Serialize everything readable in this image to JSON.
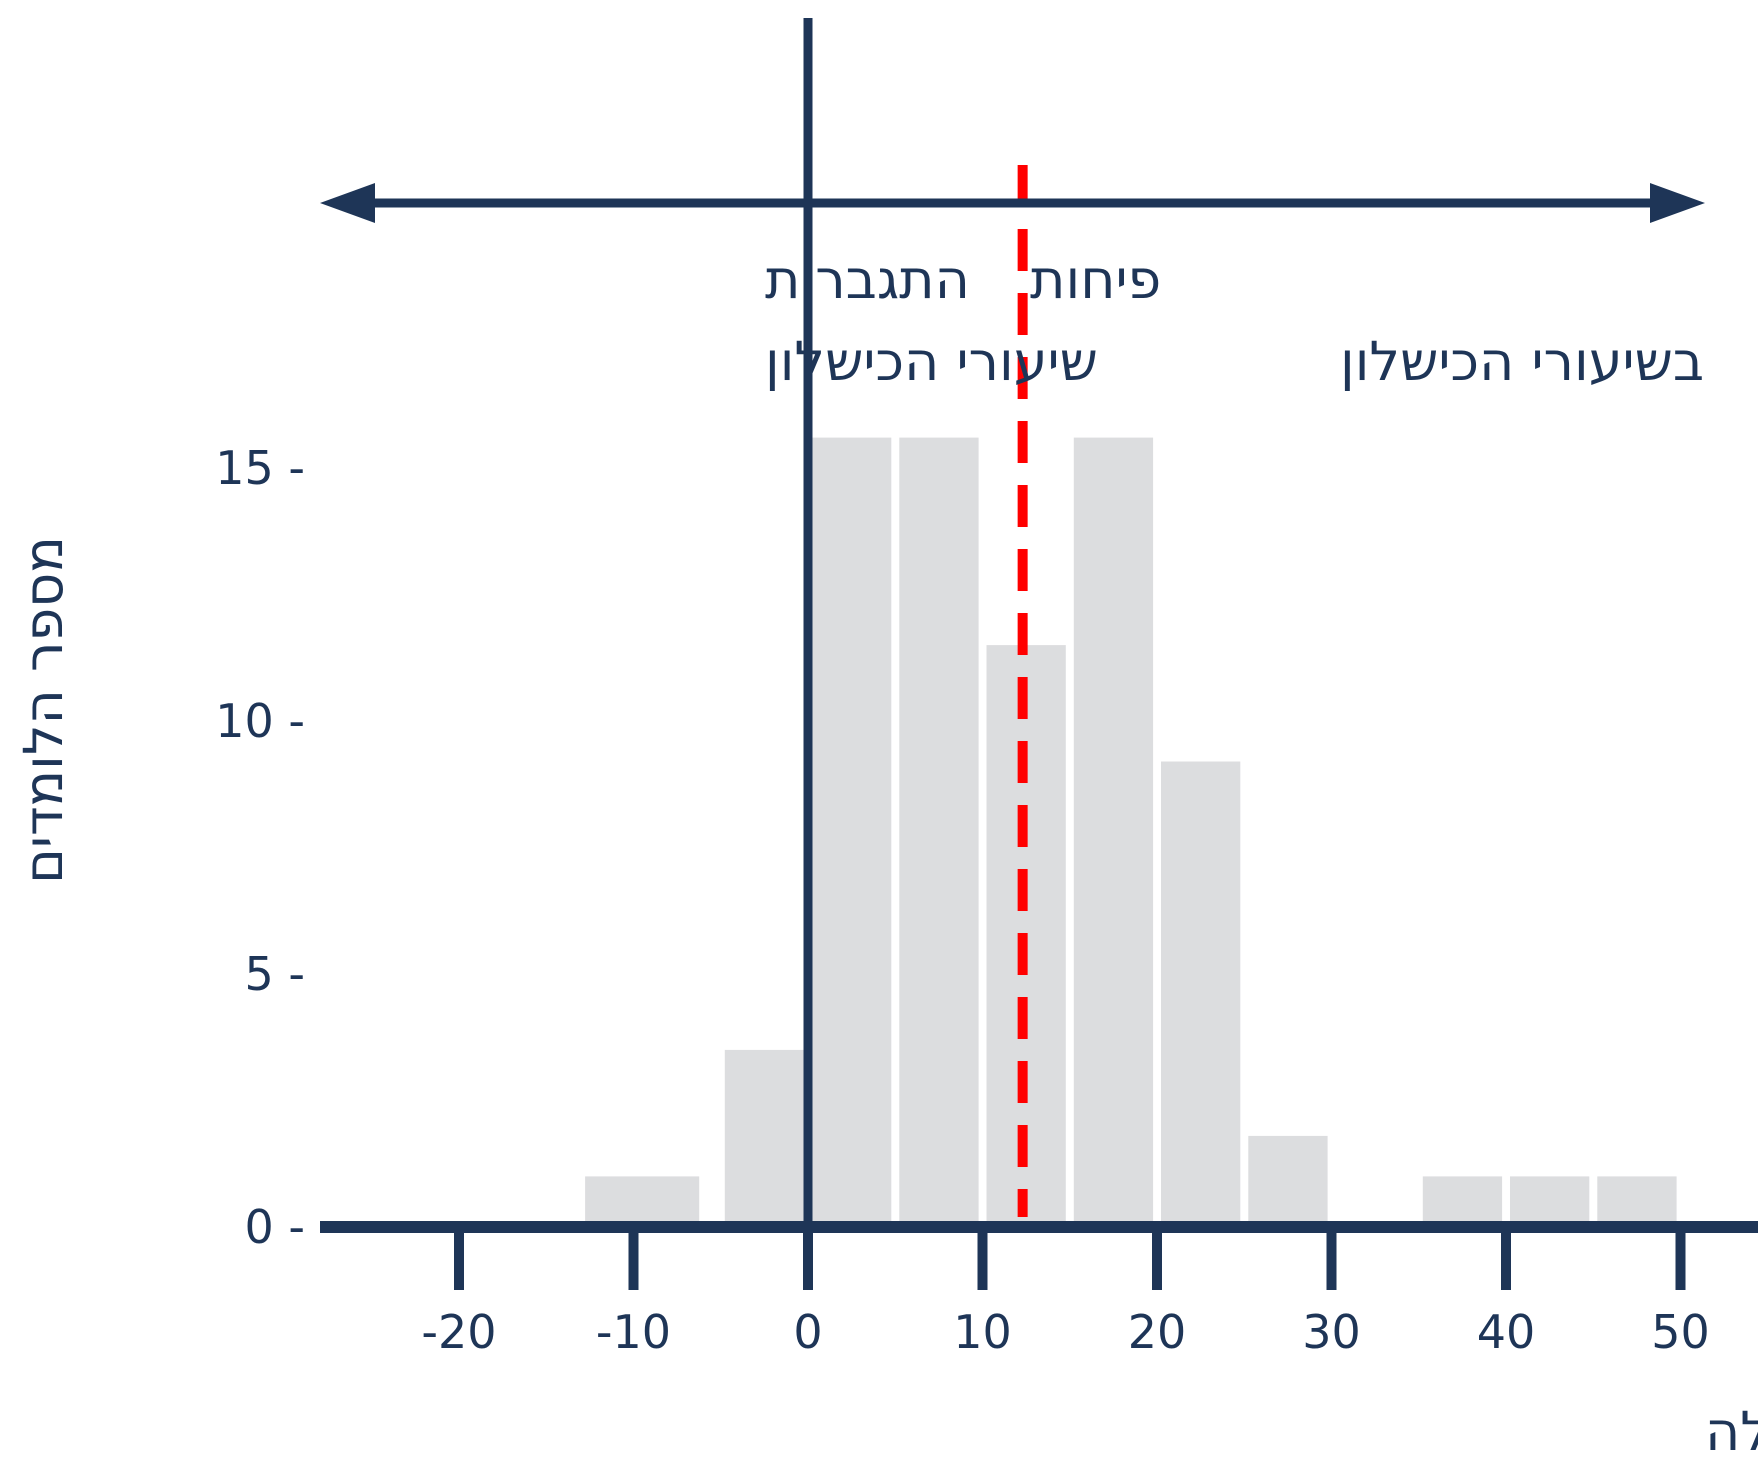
{
  "chart_data": {
    "type": "bar",
    "xlabel": "אחוז השינוי בשיעורי הכישלון עם למידה פעילה",
    "ylabel": "מספר הלומדים",
    "xlim": [
      -27,
      55
    ],
    "ylim": [
      0,
      15.6
    ],
    "x_ticks": [
      -20,
      -10,
      0,
      10,
      20,
      30,
      40,
      50
    ],
    "x_tick_labels": [
      "-20",
      "-10",
      "0",
      "10",
      "20",
      "30",
      "40",
      "50"
    ],
    "y_ticks": [
      0,
      5,
      10,
      15
    ],
    "y_tick_labels": [
      "0 -",
      "5 -",
      "10 -",
      "15 -"
    ],
    "bin_width": 5,
    "bars": [
      {
        "bin_start": -13,
        "bin_end": -6,
        "value": 1
      },
      {
        "bin_start": -5,
        "bin_end": 0,
        "value": 3.5
      },
      {
        "bin_start": 0,
        "bin_end": 5,
        "value": 15.6
      },
      {
        "bin_start": 5,
        "bin_end": 10,
        "value": 15.6
      },
      {
        "bin_start": 10,
        "bin_end": 15,
        "value": 11.5
      },
      {
        "bin_start": 15,
        "bin_end": 20,
        "value": 15.6
      },
      {
        "bin_start": 20,
        "bin_end": 25,
        "value": 9.2
      },
      {
        "bin_start": 25,
        "bin_end": 30,
        "value": 1.8
      },
      {
        "bin_start": 35,
        "bin_end": 40,
        "value": 1
      },
      {
        "bin_start": 40,
        "bin_end": 45,
        "value": 1
      },
      {
        "bin_start": 45,
        "bin_end": 50,
        "value": 1
      }
    ],
    "mean_line_x": 12.3,
    "zero_line_x": 0,
    "regions": {
      "left_label_line1": "התגברות",
      "left_label_line2": "שיעורי הכישלון",
      "right_label_line1": "פיחות",
      "right_label_line2": "בשיעורי הכישלון"
    },
    "grid": false,
    "colors": {
      "axis": "#1e3557",
      "bars": "#dcdddf",
      "mean_line": "#ff0000",
      "background": "#ffffff"
    }
  }
}
